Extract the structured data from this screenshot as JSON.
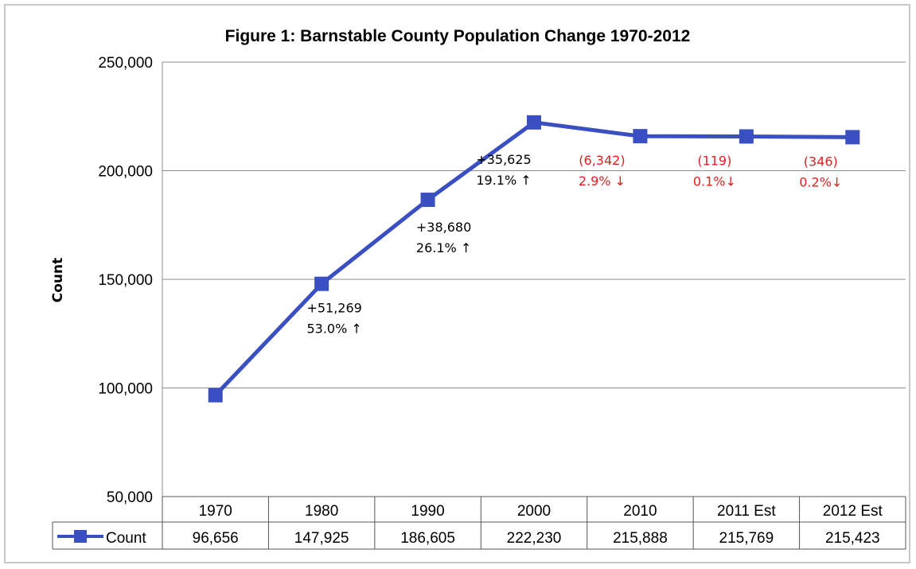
{
  "chart_data": {
    "type": "line",
    "title": "Figure 1: Barnstable County Population Change 1970-2012",
    "ylabel": "Count",
    "xlabel": "",
    "ylim": [
      50000,
      250000
    ],
    "yticks": [
      "50,000",
      "100,000",
      "150,000",
      "200,000",
      "250,000"
    ],
    "ytick_values": [
      50000,
      100000,
      150000,
      200000,
      250000
    ],
    "grid": true,
    "categories": [
      "1970",
      "1980",
      "1990",
      "2000",
      "2010",
      "2011 Est",
      "2012 Est"
    ],
    "series": [
      {
        "name": "Count",
        "color": "#3a4fc1",
        "marker": "square",
        "values": [
          96656,
          147925,
          186605,
          222230,
          215888,
          215769,
          215423
        ],
        "value_labels": [
          "96,656",
          "147,925",
          "186,605",
          "222,230",
          "215,888",
          "215,769",
          "215,423"
        ]
      }
    ],
    "data_table": true,
    "annotations": [
      {
        "index": 1,
        "lines": [
          "+51,269",
          "53.0% ↑"
        ],
        "color": "#000000"
      },
      {
        "index": 2,
        "lines": [
          "+38,680",
          "26.1% ↑"
        ],
        "color": "#000000"
      },
      {
        "index": 3,
        "lines": [
          "+35,625",
          "19.1% ↑"
        ],
        "color": "#000000"
      },
      {
        "index": 4,
        "lines": [
          "(6,342)",
          "2.9% ↓"
        ],
        "color": "#e02020"
      },
      {
        "index": 5,
        "lines": [
          "(119)",
          "0.1%↓"
        ],
        "color": "#e02020"
      },
      {
        "index": 6,
        "lines": [
          "(346)",
          "0.2%↓"
        ],
        "color": "#e02020"
      }
    ]
  }
}
